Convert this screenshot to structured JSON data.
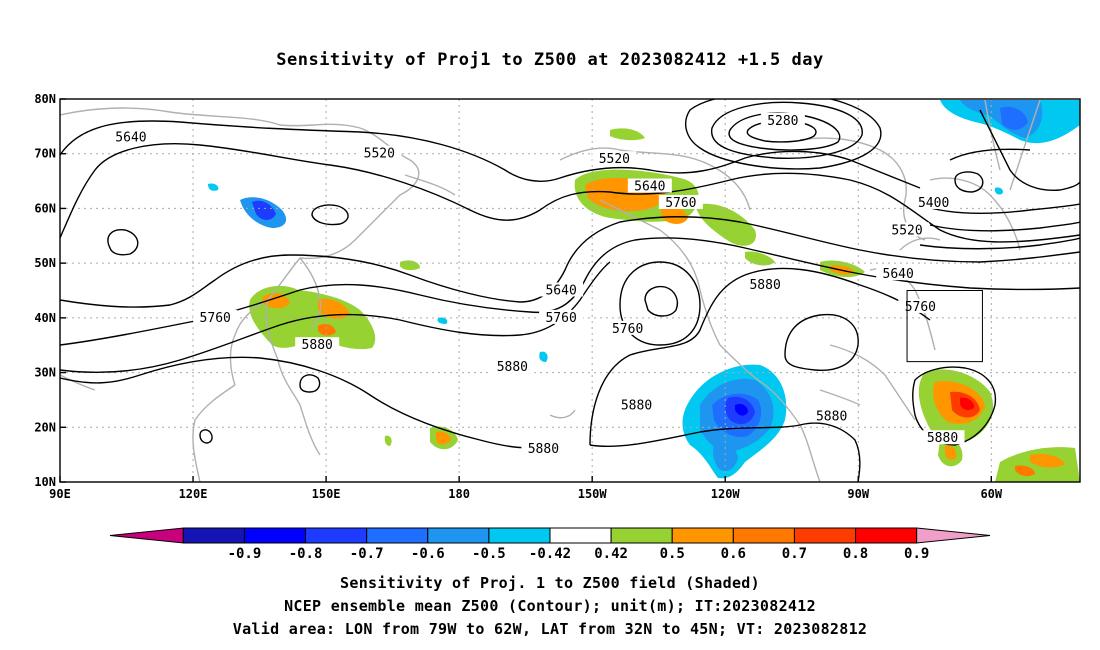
{
  "title": "Sensitivity of Proj1 to Z500 at 2023082412 +1.5 day",
  "captions": {
    "line1": "Sensitivity of Proj. 1 to Z500 field (Shaded)",
    "line2": "NCEP ensemble mean Z500 (Contour); unit(m); IT:2023082412",
    "line3": "Valid area: LON from 79W to 62W, LAT from 32N to 45N; VT: 2023082812"
  },
  "chart_data": {
    "type": "map",
    "xlim_lon_east": [
      90,
      320
    ],
    "ylim_lat": [
      10,
      80
    ],
    "x_ticks": [
      {
        "lon": 90,
        "label": "90E"
      },
      {
        "lon": 120,
        "label": "120E"
      },
      {
        "lon": 150,
        "label": "150E"
      },
      {
        "lon": 180,
        "label": "180"
      },
      {
        "lon": 210,
        "label": "150W"
      },
      {
        "lon": 240,
        "label": "120W"
      },
      {
        "lon": 270,
        "label": "90W"
      },
      {
        "lon": 300,
        "label": "60W"
      }
    ],
    "y_ticks": [
      {
        "lat": 10,
        "label": "10N"
      },
      {
        "lat": 20,
        "label": "20N"
      },
      {
        "lat": 30,
        "label": "30N"
      },
      {
        "lat": 40,
        "label": "40N"
      },
      {
        "lat": 50,
        "label": "50N"
      },
      {
        "lat": 60,
        "label": "60N"
      },
      {
        "lat": 70,
        "label": "70N"
      },
      {
        "lat": 80,
        "label": "80N"
      }
    ],
    "grid": true,
    "valid_area": {
      "lon_w": [
        79,
        62
      ],
      "lat_n": [
        32,
        45
      ]
    },
    "colorbar": {
      "labels": [
        "-0.9",
        "-0.8",
        "-0.7",
        "-0.6",
        "-0.5",
        "-0.42",
        "0.42",
        "0.5",
        "0.6",
        "0.7",
        "0.8",
        "0.9"
      ],
      "colors": [
        "#c8007d",
        "#1414b4",
        "#0000ff",
        "#1e3cff",
        "#1e6eff",
        "#1e96f0",
        "#00c8f0",
        "#ffffff",
        "#96d232",
        "#ff9600",
        "#ff7800",
        "#ff3c00",
        "#ff0000",
        "#f0a0c8"
      ]
    },
    "contours": [
      {
        "level": 5280,
        "label": "5280",
        "lon": 253,
        "lat": 76
      },
      {
        "level": 5400,
        "label": "5400",
        "lon": 287,
        "lat": 61
      },
      {
        "level": 5520,
        "label": "5520",
        "lon": 162,
        "lat": 70
      },
      {
        "level": 5520,
        "label": "5520",
        "lon": 215,
        "lat": 69
      },
      {
        "level": 5520,
        "label": "5520",
        "lon": 281,
        "lat": 56
      },
      {
        "level": 5640,
        "label": "5640",
        "lon": 106,
        "lat": 73
      },
      {
        "level": 5640,
        "label": "5640",
        "lon": 223,
        "lat": 64
      },
      {
        "level": 5640,
        "label": "5640",
        "lon": 279,
        "lat": 48
      },
      {
        "level": 5640,
        "label": "5640",
        "lon": 203,
        "lat": 45
      },
      {
        "level": 5760,
        "label": "5760",
        "lon": 230,
        "lat": 61
      },
      {
        "level": 5760,
        "label": "5760",
        "lon": 284,
        "lat": 42
      },
      {
        "level": 5760,
        "label": "5760",
        "lon": 203,
        "lat": 40
      },
      {
        "level": 5760,
        "label": "5760",
        "lon": 125,
        "lat": 40
      },
      {
        "level": 5760,
        "label": "5760",
        "lon": 218,
        "lat": 38
      },
      {
        "level": 5880,
        "label": "5880",
        "lon": 148,
        "lat": 35
      },
      {
        "level": 5880,
        "label": "5880",
        "lon": 192,
        "lat": 31
      },
      {
        "level": 5880,
        "label": "5880",
        "lon": 249,
        "lat": 46
      },
      {
        "level": 5880,
        "label": "5880",
        "lon": 220,
        "lat": 24
      },
      {
        "level": 5880,
        "label": "5880",
        "lon": 199,
        "lat": 16
      },
      {
        "level": 5880,
        "label": "5880",
        "lon": 264,
        "lat": 22
      },
      {
        "level": 5880,
        "label": "5880",
        "lon": 289,
        "lat": 18
      }
    ]
  }
}
